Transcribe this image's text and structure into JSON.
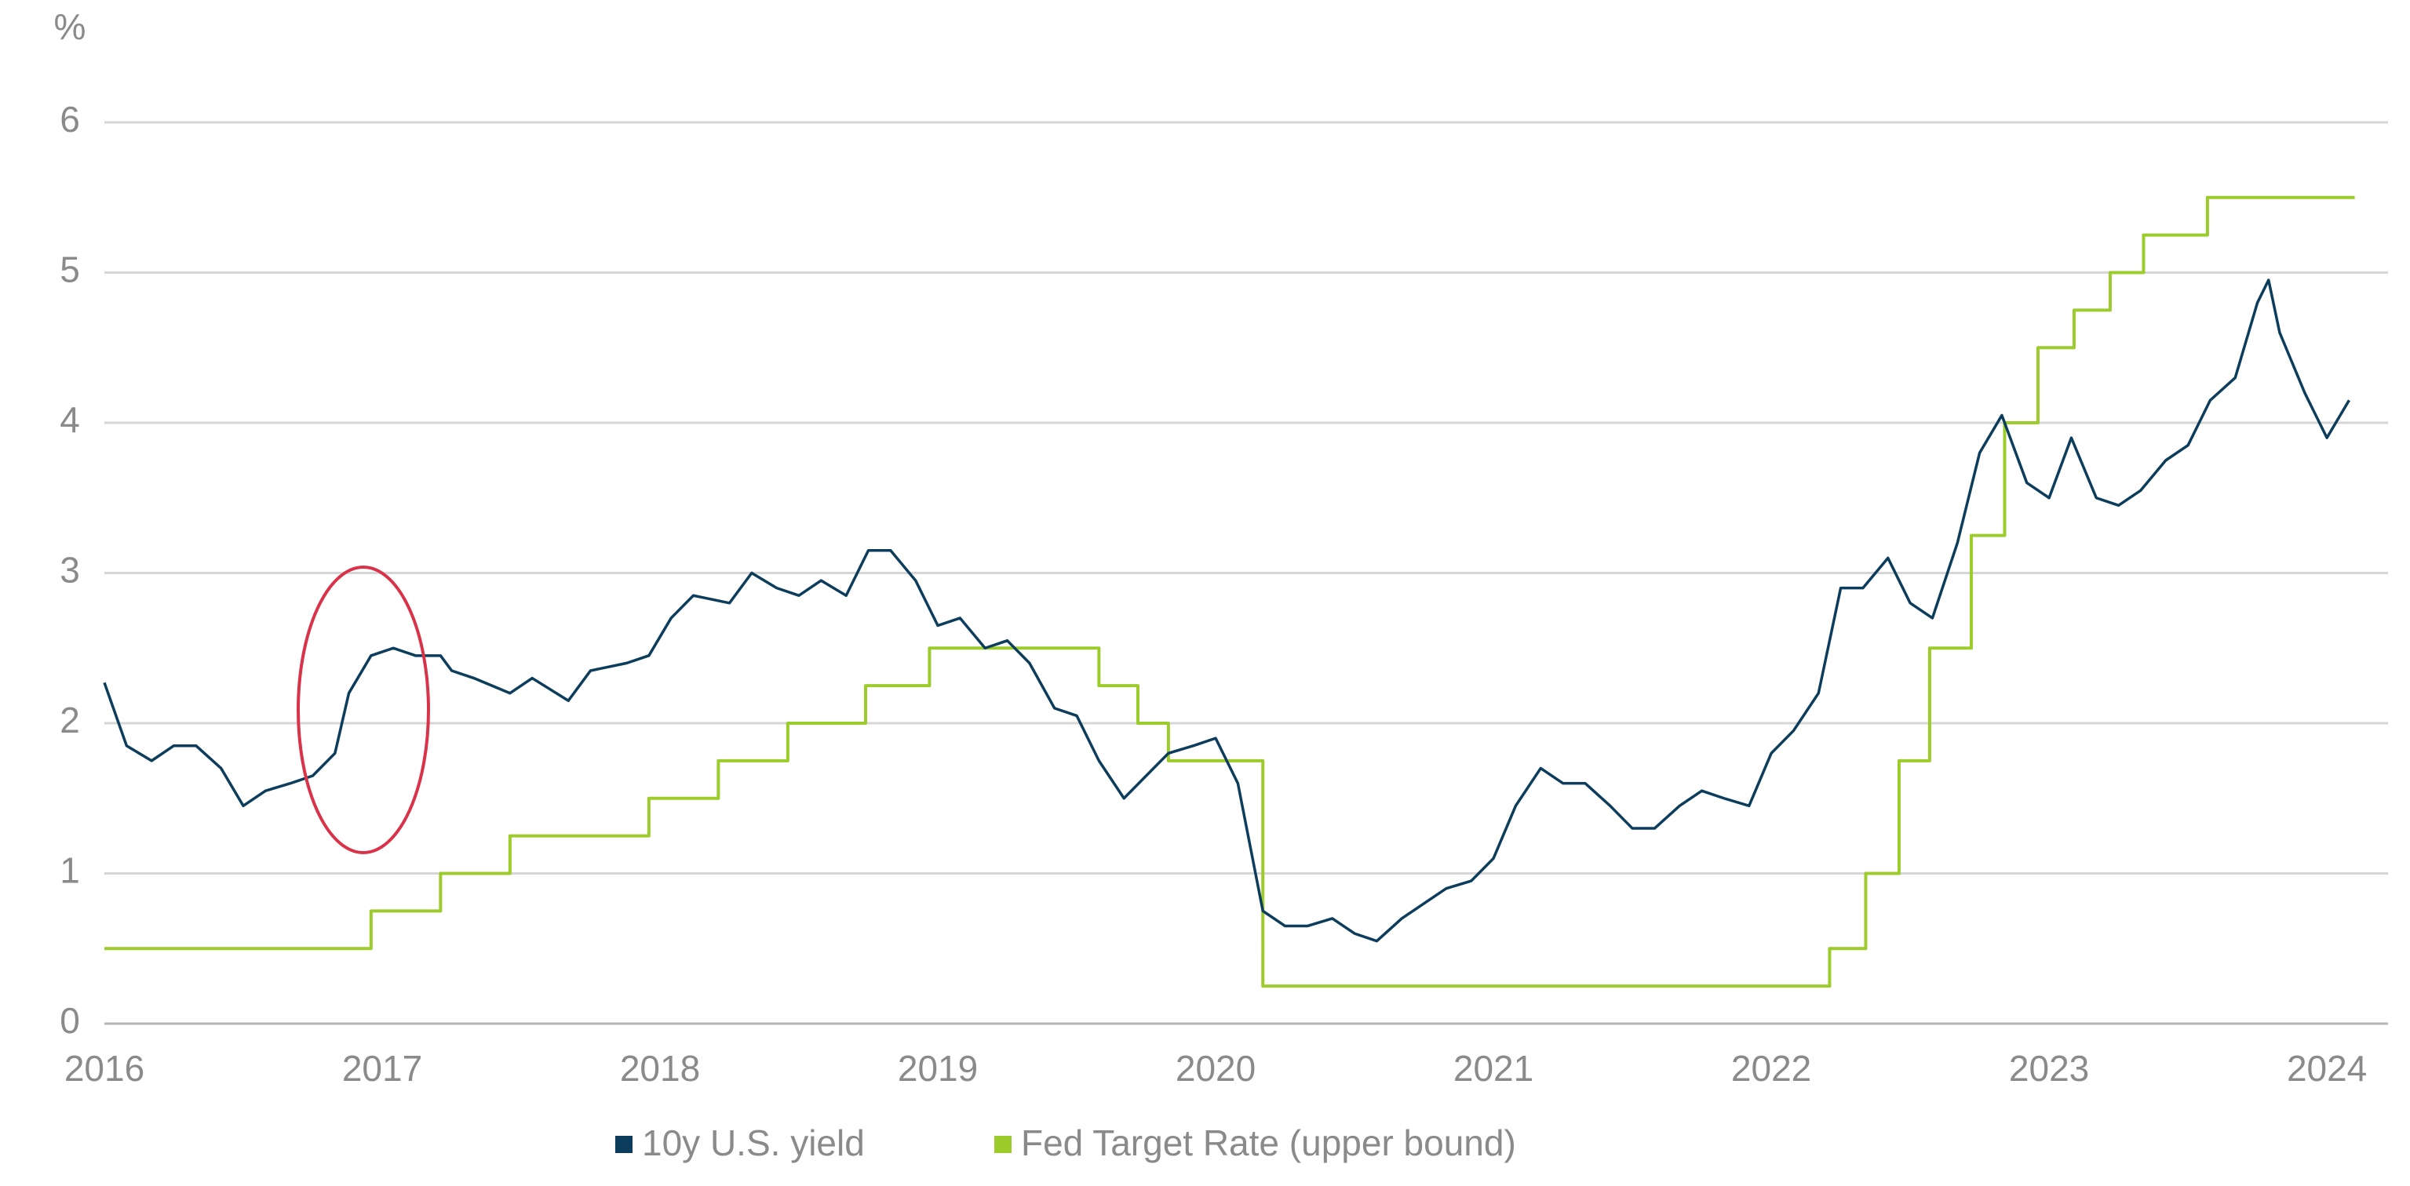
{
  "chart_data": {
    "type": "line",
    "ylabel": "%",
    "xlim": [
      2016,
      2024.22
    ],
    "xticks": [
      2016,
      2017,
      2018,
      2019,
      2020,
      2021,
      2022,
      2023,
      2024
    ],
    "ylim": [
      0,
      6
    ],
    "yticks": [
      0,
      1,
      2,
      3,
      4,
      5,
      6
    ],
    "grid": true,
    "legend": "bottom",
    "series": [
      {
        "name": "10y U.S. yield",
        "color": "#0d3d5c",
        "x": [
          2016.0,
          2016.08,
          2016.17,
          2016.25,
          2016.33,
          2016.42,
          2016.5,
          2016.58,
          2016.67,
          2016.75,
          2016.83,
          2016.88,
          2016.96,
          2017.04,
          2017.12,
          2017.21,
          2017.25,
          2017.33,
          2017.46,
          2017.54,
          2017.67,
          2017.75,
          2017.88,
          2017.96,
          2018.04,
          2018.12,
          2018.25,
          2018.33,
          2018.42,
          2018.5,
          2018.58,
          2018.67,
          2018.75,
          2018.83,
          2018.92,
          2019.0,
          2019.08,
          2019.17,
          2019.25,
          2019.33,
          2019.42,
          2019.5,
          2019.58,
          2019.67,
          2019.75,
          2019.83,
          2019.92,
          2020.0,
          2020.08,
          2020.17,
          2020.25,
          2020.33,
          2020.42,
          2020.5,
          2020.58,
          2020.67,
          2020.75,
          2020.83,
          2020.92,
          2021.0,
          2021.08,
          2021.17,
          2021.25,
          2021.33,
          2021.42,
          2021.5,
          2021.58,
          2021.67,
          2021.75,
          2021.83,
          2021.92,
          2022.0,
          2022.08,
          2022.17,
          2022.25,
          2022.33,
          2022.42,
          2022.5,
          2022.58,
          2022.67,
          2022.75,
          2022.83,
          2022.92,
          2023.0,
          2023.08,
          2023.17,
          2023.25,
          2023.33,
          2023.42,
          2023.5,
          2023.58,
          2023.67,
          2023.75,
          2023.79,
          2023.83,
          2023.92,
          2024.0,
          2024.08
        ],
        "values": [
          2.27,
          1.85,
          1.75,
          1.85,
          1.85,
          1.7,
          1.45,
          1.55,
          1.6,
          1.65,
          1.8,
          2.2,
          2.45,
          2.5,
          2.45,
          2.45,
          2.35,
          2.3,
          2.2,
          2.3,
          2.15,
          2.35,
          2.4,
          2.45,
          2.7,
          2.85,
          2.8,
          3.0,
          2.9,
          2.85,
          2.95,
          2.85,
          3.15,
          3.15,
          2.95,
          2.65,
          2.7,
          2.5,
          2.55,
          2.4,
          2.1,
          2.05,
          1.75,
          1.5,
          1.65,
          1.8,
          1.85,
          1.9,
          1.6,
          0.75,
          0.65,
          0.65,
          0.7,
          0.6,
          0.55,
          0.7,
          0.8,
          0.9,
          0.95,
          1.1,
          1.45,
          1.7,
          1.6,
          1.6,
          1.45,
          1.3,
          1.3,
          1.45,
          1.55,
          1.5,
          1.45,
          1.8,
          1.95,
          2.2,
          2.9,
          2.9,
          3.1,
          2.8,
          2.7,
          3.2,
          3.8,
          4.05,
          3.6,
          3.5,
          3.9,
          3.5,
          3.45,
          3.55,
          3.75,
          3.85,
          4.15,
          4.3,
          4.8,
          4.95,
          4.6,
          4.2,
          3.9,
          4.15
        ]
      },
      {
        "name": "Fed Target Rate (upper bound)",
        "color": "#9ccc2c",
        "step": true,
        "x": [
          2016.0,
          2016.96,
          2017.21,
          2017.46,
          2017.96,
          2018.21,
          2018.46,
          2018.74,
          2018.97,
          2019.58,
          2019.72,
          2019.83,
          2020.17,
          2022.21,
          2022.34,
          2022.46,
          2022.57,
          2022.72,
          2022.84,
          2022.96,
          2023.09,
          2023.22,
          2023.34,
          2023.57,
          2024.1
        ],
        "values": [
          0.5,
          0.75,
          1.0,
          1.25,
          1.5,
          1.75,
          2.0,
          2.25,
          2.5,
          2.25,
          2.0,
          1.75,
          0.25,
          0.5,
          1.0,
          1.75,
          2.5,
          3.25,
          4.0,
          4.5,
          4.75,
          5.0,
          5.25,
          5.5,
          5.5
        ]
      }
    ]
  }
}
